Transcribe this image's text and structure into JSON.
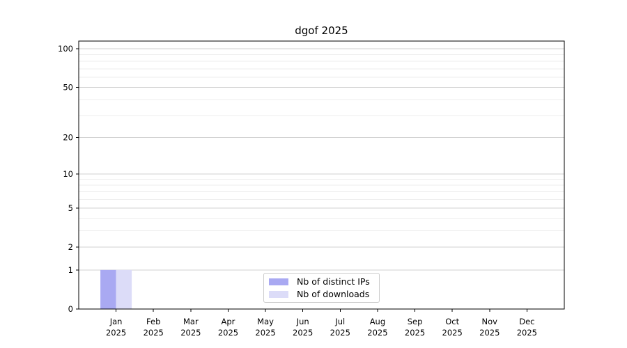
{
  "figure": {
    "background": "#ffffff"
  },
  "chart_data": {
    "type": "bar",
    "title": "dgof 2025",
    "categories": [
      "Jan",
      "Feb",
      "Mar",
      "Apr",
      "May",
      "Jun",
      "Jul",
      "Aug",
      "Sep",
      "Oct",
      "Nov",
      "Dec"
    ],
    "category_year": "2025",
    "series": [
      {
        "name": "Nb of distinct IPs",
        "color": "#a9a9f2",
        "values": [
          1,
          0,
          0,
          0,
          0,
          0,
          0,
          0,
          0,
          0,
          0,
          0
        ]
      },
      {
        "name": "Nb of downloads",
        "color": "#dcdcf8",
        "values": [
          1,
          0,
          0,
          0,
          0,
          0,
          0,
          0,
          0,
          0,
          0,
          0
        ]
      }
    ],
    "xlabel": "",
    "ylabel": "",
    "yscale": "log1p",
    "yticks": [
      0,
      1,
      2,
      5,
      10,
      20,
      50,
      100
    ],
    "minor_gridlines": [
      3,
      4,
      6,
      7,
      8,
      9,
      30,
      40,
      60,
      70,
      80,
      90
    ],
    "ylim": [
      0,
      115
    ],
    "grid": true,
    "legend_position": "lower center",
    "colors": {
      "spine": "#000000",
      "major_grid": "#d0d0d0",
      "minor_grid": "#ededed",
      "tick": "#000000",
      "text": "#000000"
    }
  }
}
